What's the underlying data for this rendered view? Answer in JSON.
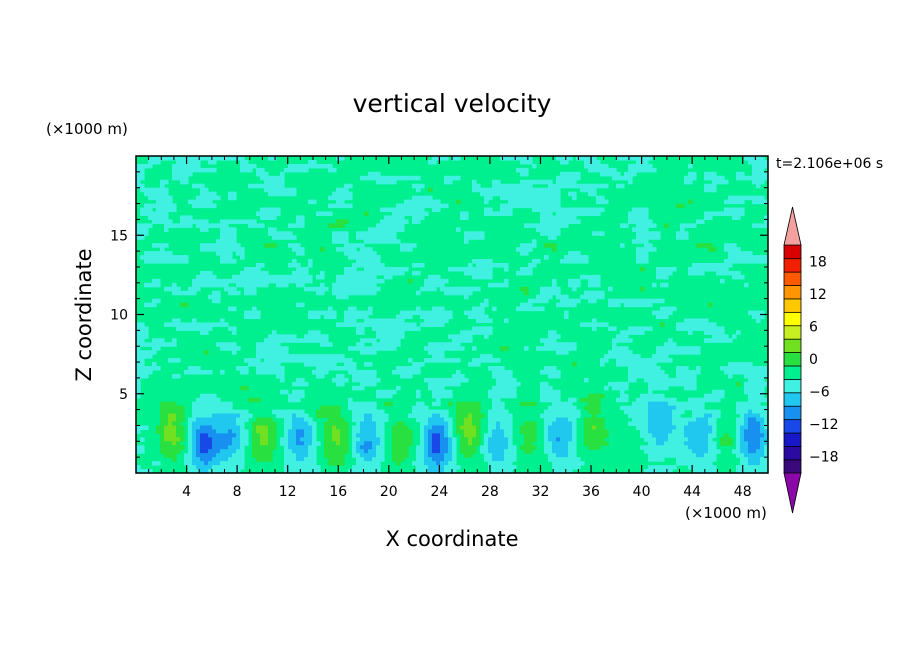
{
  "chart_data": {
    "type": "heatmap",
    "title": "vertical velocity",
    "xlabel": "X coordinate",
    "ylabel": "Z coordinate",
    "x_unit": "(×1000 m)",
    "y_unit": "(×1000 m)",
    "time_label": "t=2.106e+06 s",
    "xlim": [
      0,
      50
    ],
    "ylim": [
      0,
      20
    ],
    "xticks": [
      4,
      8,
      12,
      16,
      20,
      24,
      28,
      32,
      36,
      40,
      44,
      48
    ],
    "yticks": [
      5,
      10,
      15
    ],
    "colorbar": {
      "range": [
        -21,
        21
      ],
      "step": 3,
      "tick_labels": [
        "18",
        "12",
        "6",
        "0",
        "−6",
        "−12",
        "−18"
      ],
      "tick_values": [
        18,
        12,
        6,
        0,
        -6,
        -12,
        -18
      ],
      "colors": [
        "#3a0a7a",
        "#2a0aa0",
        "#1818c8",
        "#1848e8",
        "#1890f0",
        "#20c8f0",
        "#40f0e0",
        "#00f090",
        "#28e040",
        "#70e020",
        "#c8f020",
        "#ffff00",
        "#ffc800",
        "#ff9600",
        "#ff5a00",
        "#f02000",
        "#d80000"
      ],
      "over_color": "#f4a0a0",
      "under_color": "#8a08a8"
    },
    "features": {
      "updrafts": [
        {
          "x": 2.8,
          "z": 2.7,
          "peak": 7.5
        },
        {
          "x": 10.0,
          "z": 2.3,
          "peak": 6.5
        },
        {
          "x": 15.8,
          "z": 2.2,
          "peak": 6
        },
        {
          "x": 21.0,
          "z": 1.9,
          "peak": 4.5
        },
        {
          "x": 26.3,
          "z": 2.5,
          "peak": 7
        },
        {
          "x": 31.0,
          "z": 2.0,
          "peak": 4.5
        },
        {
          "x": 36.2,
          "z": 3.0,
          "peak": 5.5
        },
        {
          "x": 39.0,
          "z": 1.2,
          "peak": 2
        },
        {
          "x": 47.0,
          "z": 2.5,
          "peak": 3.5
        }
      ],
      "downdrafts": [
        {
          "x": 5.4,
          "z": 1.8,
          "peak": -11
        },
        {
          "x": 7.5,
          "z": 2.2,
          "peak": -6
        },
        {
          "x": 13.0,
          "z": 2.0,
          "peak": -6.5
        },
        {
          "x": 18.3,
          "z": 2.0,
          "peak": -6.5
        },
        {
          "x": 23.8,
          "z": 1.8,
          "peak": -11
        },
        {
          "x": 28.6,
          "z": 2.0,
          "peak": -6
        },
        {
          "x": 33.6,
          "z": 2.2,
          "peak": -6.5
        },
        {
          "x": 41.5,
          "z": 3.0,
          "peak": -6
        },
        {
          "x": 44.5,
          "z": 2.3,
          "peak": -6
        },
        {
          "x": 48.8,
          "z": 2.3,
          "peak": -10
        }
      ]
    }
  }
}
